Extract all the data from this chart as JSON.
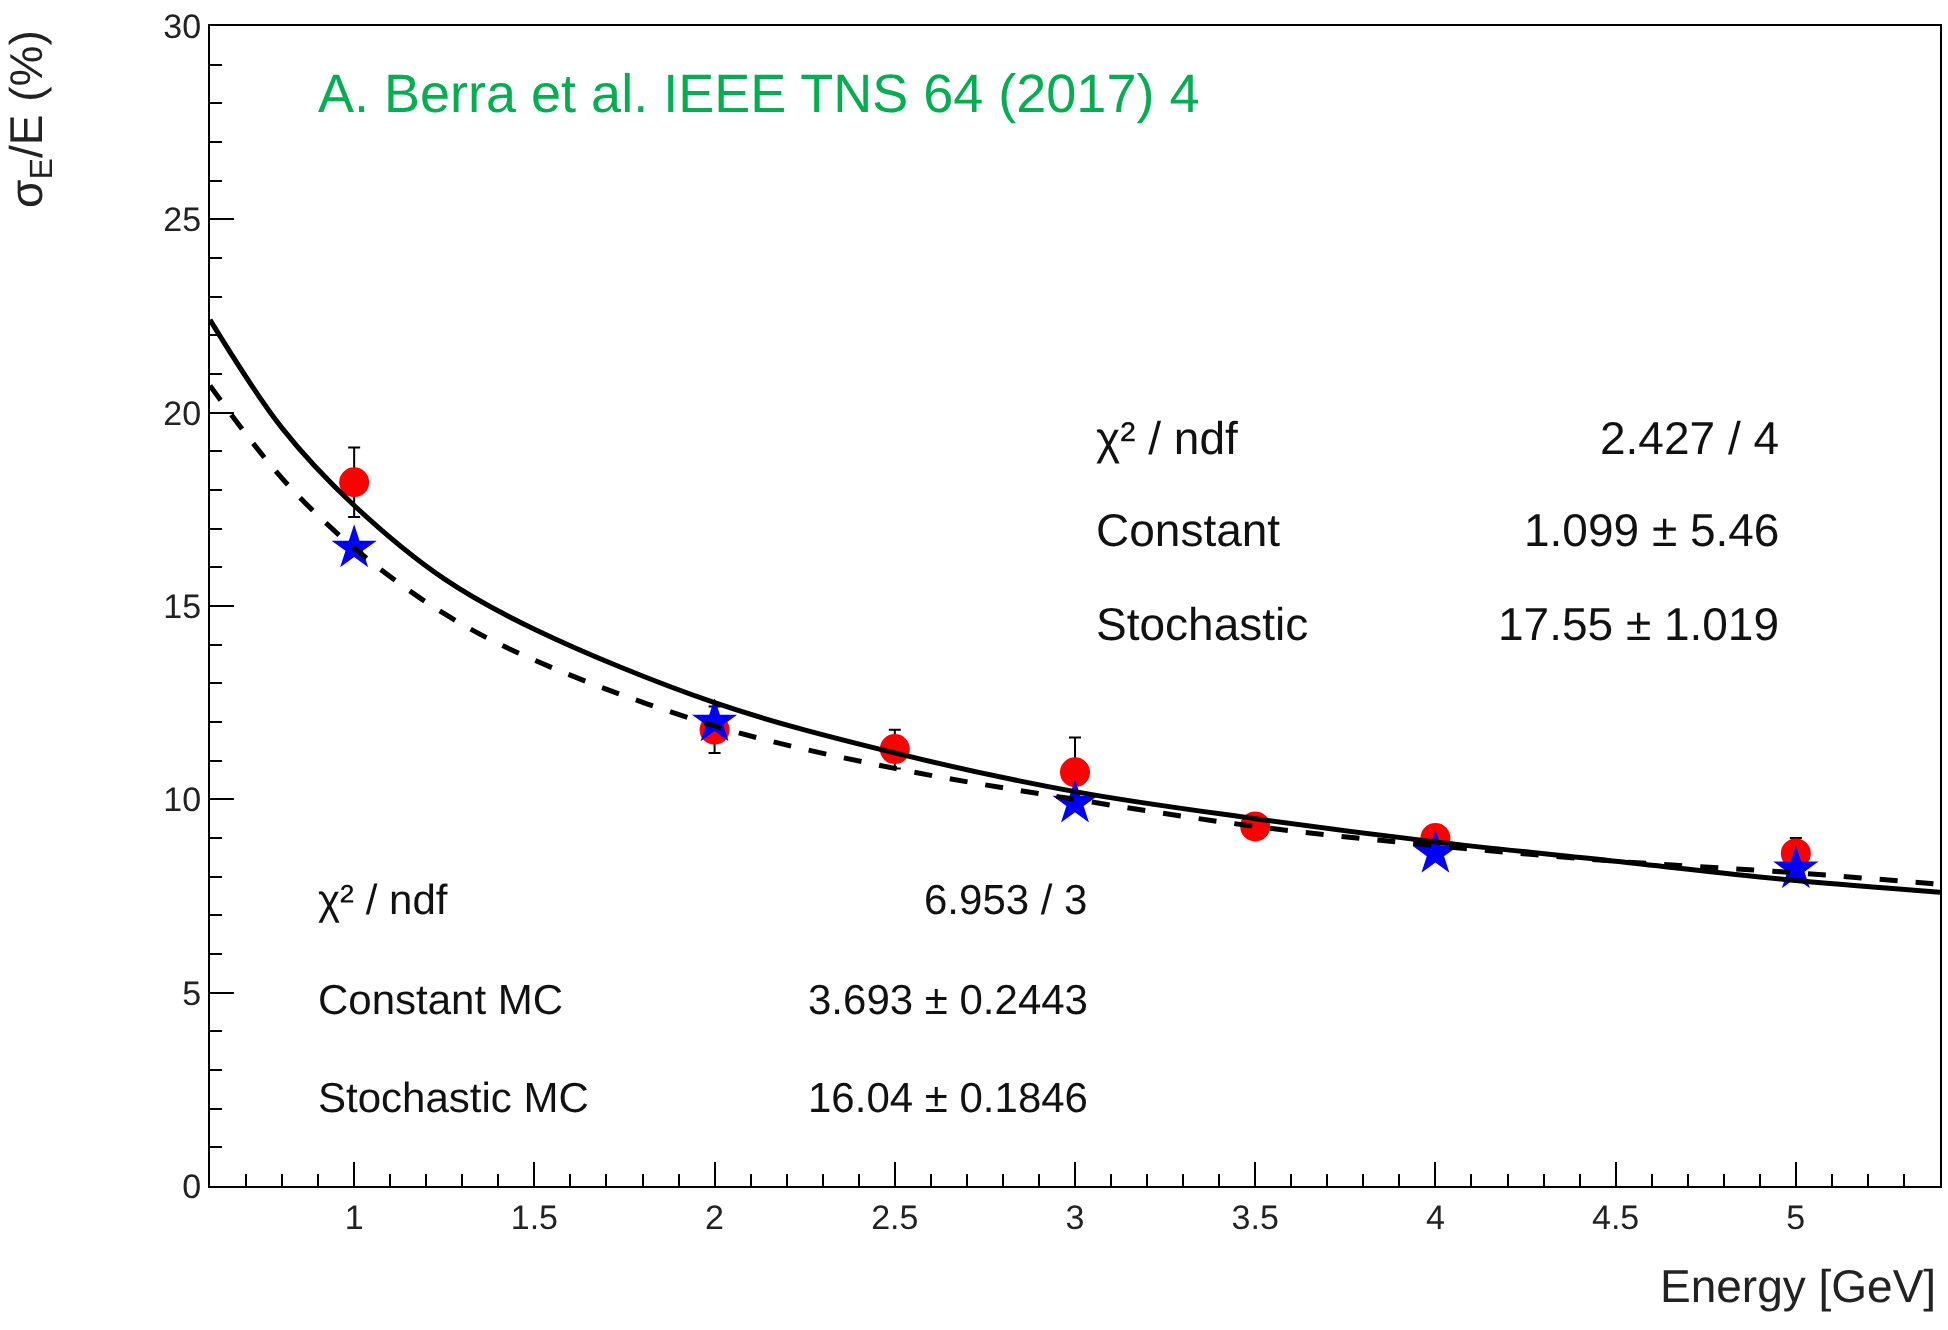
{
  "chart_data": {
    "type": "scatter",
    "title": "A. Berra et al. IEEE TNS 64 (2017) 4",
    "xlabel": "Energy [GeV]",
    "ylabel": "σ$_{E}$/E (%)",
    "xlim": [
      0.6,
      5.4
    ],
    "xticks": [
      1,
      1.5,
      2,
      2.5,
      3,
      3.5,
      4,
      4.5,
      5
    ],
    "ylim": [
      0,
      30
    ],
    "yticks": [
      0,
      5,
      10,
      15,
      20,
      25,
      30
    ],
    "series": [
      {
        "marker": "circle",
        "color": "#ff0000",
        "x": [
          1,
          2,
          2.5,
          3,
          3.5,
          4,
          5
        ],
        "values": [
          18.2,
          11.8,
          11.3,
          10.7,
          9.3,
          9.0,
          8.6
        ],
        "errors": [
          0.9,
          0.6,
          0.5,
          0.9,
          0.3,
          null,
          0.4
        ]
      },
      {
        "marker": "star",
        "color": "#0000ff",
        "x": [
          1,
          2,
          3,
          4,
          5
        ],
        "values": [
          16.5,
          12.0,
          9.9,
          8.6,
          8.2
        ]
      },
      {
        "type": "line",
        "line_style": "solid",
        "color": "#000000",
        "x": [
          0.6,
          0.8,
          1.0,
          1.25,
          1.5,
          2,
          2.5,
          3,
          3.5,
          4,
          4.5,
          5,
          5.4
        ],
        "values": [
          22.4,
          19.6,
          17.6,
          15.7,
          14.4,
          12.5,
          11.2,
          10.2,
          9.5,
          8.9,
          8.4,
          7.9,
          7.6
        ]
      },
      {
        "type": "line",
        "line_style": "dashed",
        "color": "#000000",
        "x": [
          0.6,
          0.8,
          1.0,
          1.25,
          1.5,
          2,
          2.5,
          3,
          3.5,
          4,
          4.5,
          5,
          5.4
        ],
        "values": [
          20.7,
          18.3,
          16.5,
          14.8,
          13.6,
          11.9,
          10.8,
          10.0,
          9.3,
          8.8,
          8.4,
          8.1,
          7.8
        ]
      }
    ],
    "annotations": [
      "χ² / ndf",
      "2.427 / 4",
      "Constant",
      "1.099 ± 5.46",
      "Stochastic",
      "17.55 ± 1.019",
      "χ² / ndf",
      "6.953 / 3",
      "Constant MC",
      "3.693 ± 0.2443",
      "Stochastic MC",
      "16.04 ± 0.1846"
    ]
  }
}
